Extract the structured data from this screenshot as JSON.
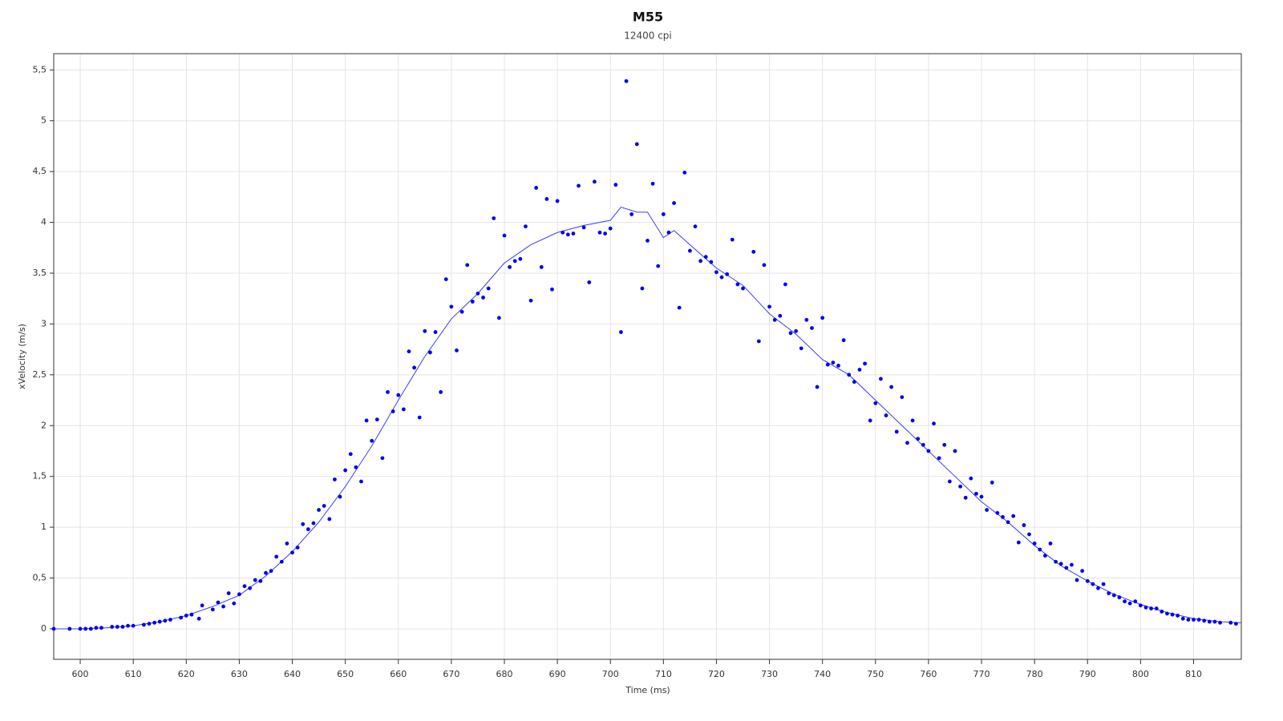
{
  "chart_data": {
    "type": "scatter",
    "title": "M55",
    "subtitle": "12400 cpi",
    "xlabel": "Time (ms)",
    "ylabel": "xVelocity (m/s)",
    "xlim": [
      595,
      819
    ],
    "ylim": [
      -0.3,
      5.66
    ],
    "xticks": [
      600,
      610,
      620,
      630,
      640,
      650,
      660,
      670,
      680,
      690,
      700,
      710,
      720,
      730,
      740,
      750,
      760,
      770,
      780,
      790,
      800,
      810
    ],
    "yticks": [
      0,
      {
        "value": 0.5,
        "label": "0,5"
      },
      1,
      {
        "value": 1.5,
        "label": "1,5"
      },
      2,
      {
        "value": 2.5,
        "label": "2,5"
      },
      3,
      {
        "value": 3.5,
        "label": "3,5"
      },
      4,
      {
        "value": 4.5,
        "label": "4,5"
      },
      5,
      {
        "value": 5.5,
        "label": "5,5"
      }
    ],
    "grid": true,
    "series": [
      {
        "type": "line",
        "color": "#3b3bff",
        "x": [
          595,
          600,
          605,
          610,
          615,
          620,
          625,
          630,
          635,
          640,
          645,
          650,
          655,
          660,
          665,
          670,
          675,
          680,
          685,
          690,
          695,
          700,
          702,
          705,
          707,
          710,
          712,
          715,
          720,
          725,
          730,
          735,
          740,
          745,
          750,
          755,
          760,
          765,
          770,
          775,
          780,
          785,
          790,
          795,
          800,
          805,
          810,
          815,
          819
        ],
        "values": [
          0,
          0,
          0.01,
          0.03,
          0.07,
          0.13,
          0.22,
          0.33,
          0.52,
          0.76,
          1.05,
          1.4,
          1.8,
          2.25,
          2.68,
          3.05,
          3.3,
          3.6,
          3.78,
          3.9,
          3.97,
          4.02,
          4.15,
          4.1,
          4.1,
          3.85,
          3.92,
          3.78,
          3.55,
          3.38,
          3.1,
          2.9,
          2.65,
          2.5,
          2.25,
          2.0,
          1.75,
          1.5,
          1.25,
          1.05,
          0.82,
          0.62,
          0.47,
          0.34,
          0.24,
          0.16,
          0.1,
          0.07,
          0.06
        ]
      },
      {
        "type": "scatter",
        "color": "#0000ee",
        "x": [
          595,
          598,
          600,
          601,
          602,
          603,
          604,
          606,
          607,
          608,
          609,
          610,
          612,
          613,
          614,
          615,
          616,
          617,
          619,
          620,
          621,
          622.4,
          623,
          625,
          626,
          627,
          628,
          629,
          630,
          631,
          632,
          633,
          634,
          635,
          636,
          637,
          638,
          639,
          640,
          641,
          642,
          643,
          644,
          645,
          646,
          647,
          648,
          649,
          650,
          651,
          652,
          653,
          654,
          655,
          656,
          657,
          658,
          659,
          660,
          661,
          662,
          663,
          664,
          665,
          666,
          667,
          668,
          669,
          670,
          671,
          672,
          673,
          674,
          675,
          676,
          677,
          678,
          679,
          680,
          681,
          682,
          683,
          684,
          685,
          686,
          687,
          688,
          689,
          690,
          691,
          692,
          693,
          694,
          695,
          696,
          697,
          698,
          699,
          700,
          701,
          702,
          703,
          704,
          705,
          706,
          707,
          708,
          709,
          710,
          711,
          712,
          713,
          714,
          715,
          716,
          717,
          718,
          719,
          720,
          721,
          722,
          723,
          724,
          725,
          727,
          728,
          729,
          730,
          731,
          732,
          733,
          734,
          735,
          736,
          737,
          738,
          739,
          740,
          741,
          742,
          743,
          744,
          745,
          746,
          747,
          748,
          749,
          750,
          751,
          752,
          753,
          754,
          755,
          756,
          757,
          758,
          759,
          760,
          761,
          762,
          763,
          764,
          765,
          766,
          767,
          768,
          769,
          770,
          771,
          772,
          773,
          774,
          775,
          776,
          777,
          778,
          779,
          780,
          781,
          782,
          783,
          784,
          785,
          786,
          787,
          788,
          789,
          790,
          791,
          792,
          793,
          794,
          795,
          796,
          797,
          798,
          799,
          800,
          801,
          802,
          803,
          804,
          805,
          806,
          807,
          808,
          809,
          810,
          811,
          812,
          813,
          814,
          815,
          817,
          818
        ],
        "values": [
          0,
          0,
          0,
          0,
          0,
          0.01,
          0.01,
          0.02,
          0.02,
          0.02,
          0.03,
          0.03,
          0.04,
          0.05,
          0.06,
          0.07,
          0.08,
          0.09,
          0.11,
          0.13,
          0.14,
          0.1,
          0.23,
          0.19,
          0.26,
          0.22,
          0.35,
          0.25,
          0.34,
          0.42,
          0.4,
          0.48,
          0.47,
          0.55,
          0.57,
          0.71,
          0.66,
          0.84,
          0.75,
          0.8,
          1.03,
          0.98,
          1.04,
          1.17,
          1.21,
          1.08,
          1.47,
          1.3,
          1.56,
          1.72,
          1.59,
          1.45,
          2.05,
          1.85,
          2.06,
          1.68,
          2.33,
          2.14,
          2.3,
          2.16,
          2.73,
          2.57,
          2.08,
          2.93,
          2.72,
          2.92,
          2.33,
          3.44,
          3.17,
          2.74,
          3.12,
          3.58,
          3.22,
          3.3,
          3.26,
          3.35,
          4.04,
          3.06,
          3.87,
          3.56,
          3.62,
          3.64,
          3.96,
          3.23,
          4.34,
          3.56,
          4.23,
          3.34,
          4.21,
          3.9,
          3.88,
          3.89,
          4.36,
          3.95,
          3.41,
          4.4,
          3.9,
          3.89,
          3.94,
          4.37,
          2.92,
          5.39,
          4.08,
          4.77,
          3.35,
          3.82,
          4.38,
          3.57,
          4.08,
          3.9,
          4.19,
          3.16,
          4.49,
          3.72,
          3.96,
          3.62,
          3.66,
          3.61,
          3.51,
          3.46,
          3.49,
          3.83,
          3.39,
          3.35,
          3.71,
          2.83,
          3.58,
          3.17,
          3.04,
          3.08,
          3.39,
          2.91,
          2.93,
          2.76,
          3.04,
          2.96,
          2.38,
          3.06,
          2.6,
          2.62,
          2.59,
          2.84,
          2.5,
          2.43,
          2.55,
          2.61,
          2.05,
          2.22,
          2.46,
          2.1,
          2.38,
          1.94,
          2.28,
          1.83,
          2.05,
          1.87,
          1.81,
          1.75,
          2.02,
          1.68,
          1.81,
          1.45,
          1.75,
          1.4,
          1.29,
          1.48,
          1.33,
          1.3,
          1.17,
          1.44,
          1.14,
          1.1,
          1.05,
          1.11,
          0.85,
          1.02,
          0.93,
          0.84,
          0.78,
          0.72,
          0.84,
          0.66,
          0.64,
          0.6,
          0.63,
          0.48,
          0.57,
          0.47,
          0.44,
          0.4,
          0.44,
          0.35,
          0.33,
          0.31,
          0.27,
          0.25,
          0.27,
          0.23,
          0.21,
          0.2,
          0.2,
          0.17,
          0.15,
          0.14,
          0.13,
          0.1,
          0.09,
          0.09,
          0.09,
          0.08,
          0.07,
          0.07,
          0.06,
          0.06,
          0.05
        ]
      }
    ]
  }
}
